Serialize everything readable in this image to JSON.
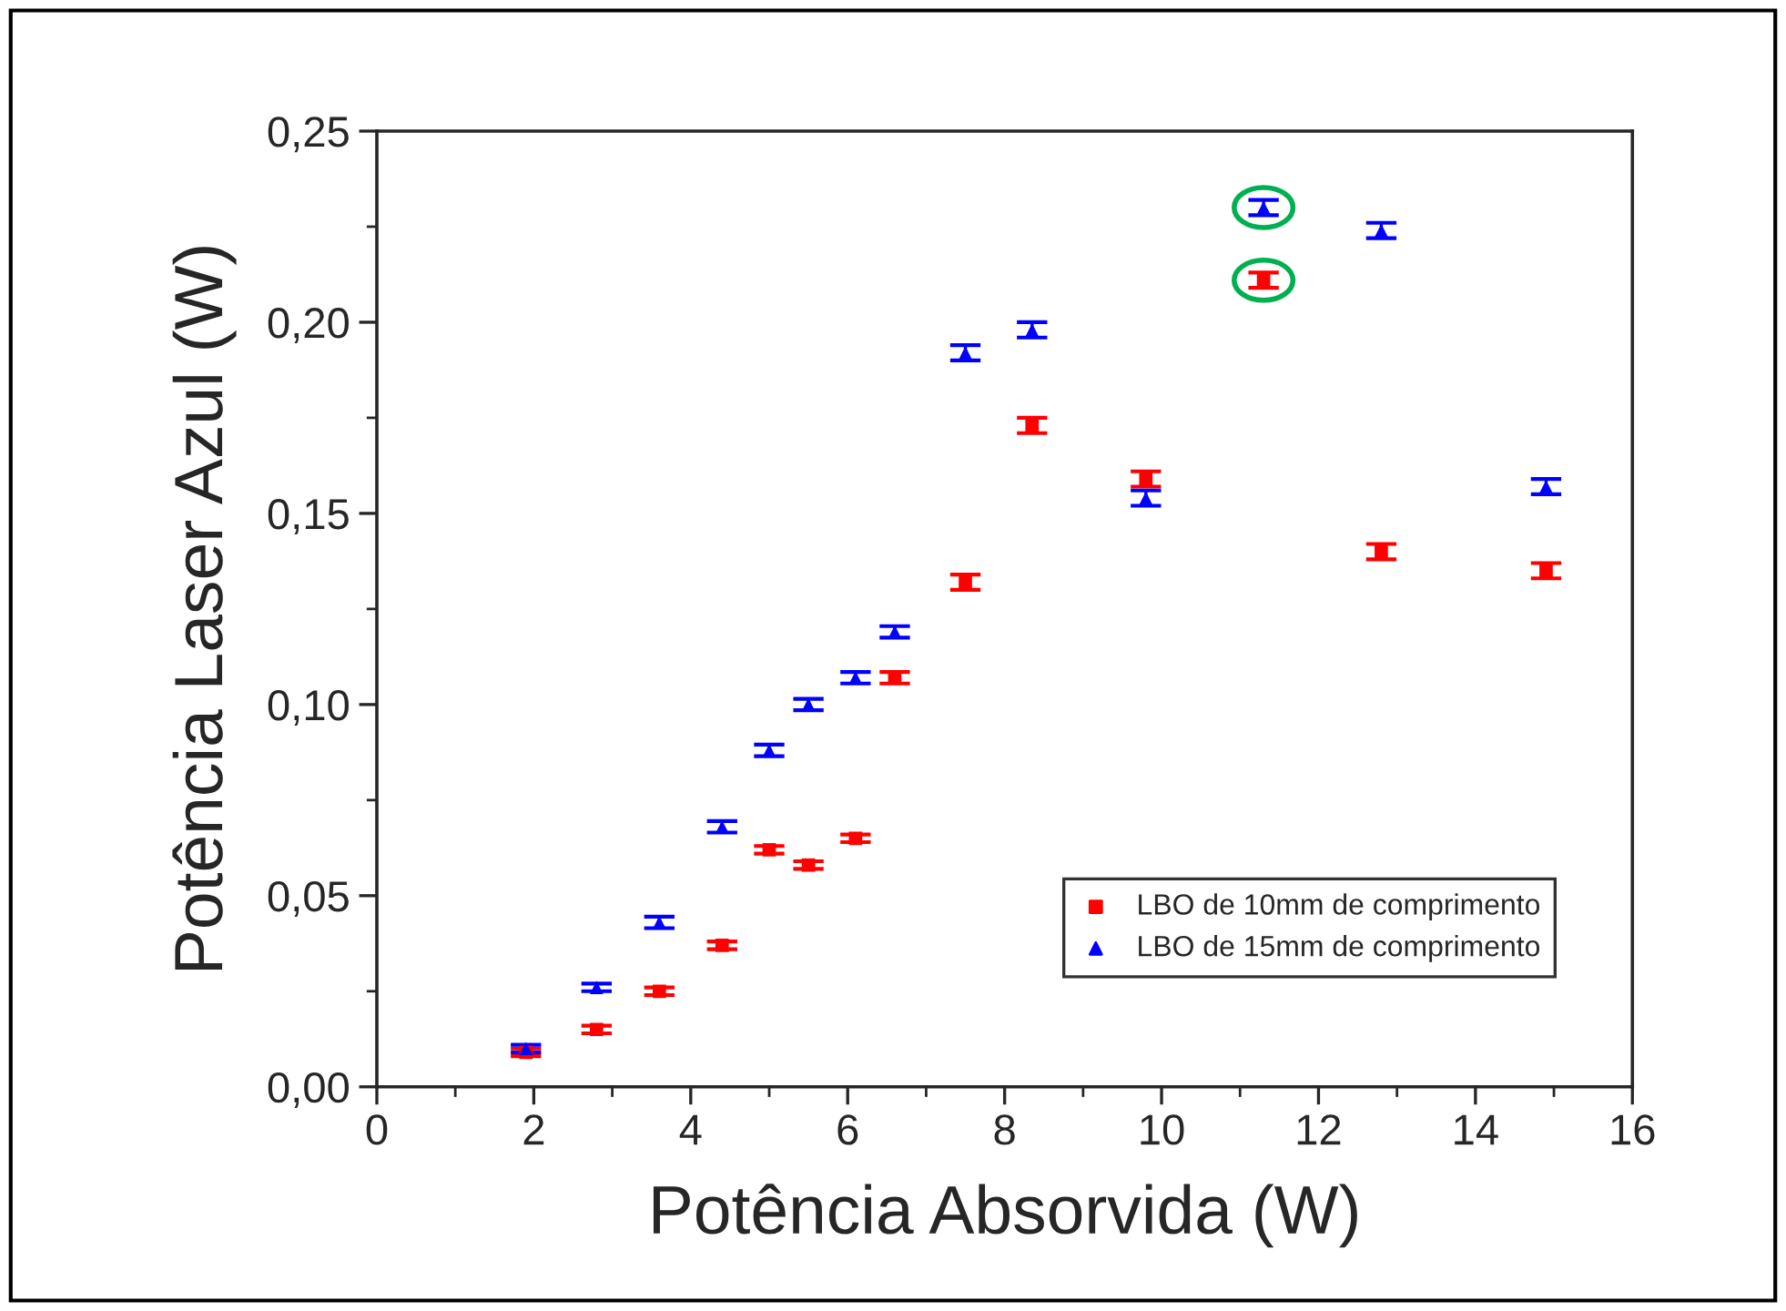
{
  "chart_data": {
    "type": "scatter",
    "xlabel": "Potência Absorvida (W)",
    "ylabel": "Potência Laser Azul (W)",
    "x": [
      1.9,
      2.8,
      3.6,
      4.4,
      5.0,
      5.5,
      6.1,
      6.6,
      7.5,
      8.35,
      9.8,
      11.3,
      12.8,
      14.9
    ],
    "series": [
      {
        "name": "LBO de 10mm de comprimento",
        "color": "#ff0000",
        "marker": "square",
        "values": [
          0.009,
          0.015,
          0.025,
          0.037,
          0.062,
          0.058,
          0.065,
          0.107,
          0.132,
          0.173,
          0.159,
          0.211,
          0.14,
          0.135
        ],
        "errors": [
          0.001,
          0.001,
          0.001,
          0.001,
          0.001,
          0.001,
          0.001,
          0.0015,
          0.002,
          0.002,
          0.002,
          0.002,
          0.002,
          0.002
        ]
      },
      {
        "name": "LBO de 15mm de comprimento",
        "color": "#0000ff",
        "marker": "triangle",
        "values": [
          0.01,
          0.026,
          0.043,
          0.068,
          0.088,
          0.1,
          0.107,
          0.119,
          0.192,
          0.198,
          0.154,
          0.23,
          0.224,
          0.157
        ],
        "errors": [
          0.001,
          0.001,
          0.0015,
          0.0015,
          0.0015,
          0.0015,
          0.0015,
          0.0015,
          0.002,
          0.002,
          0.002,
          0.002,
          0.002,
          0.002
        ]
      }
    ],
    "xlim": [
      0,
      16
    ],
    "xticks": [
      0,
      2,
      4,
      6,
      8,
      10,
      12,
      14,
      16
    ],
    "ylim": [
      0,
      0.25
    ],
    "yticks": [
      {
        "value": 0,
        "label": "0,00"
      },
      {
        "value": 0.05,
        "label": "0,05"
      },
      {
        "value": 0.1,
        "label": "0,10"
      },
      {
        "value": 0.15,
        "label": "0,15"
      },
      {
        "value": 0.2,
        "label": "0,20"
      },
      {
        "value": 0.25,
        "label": "0,25"
      }
    ],
    "grid": false,
    "legend": "bottom right"
  }
}
